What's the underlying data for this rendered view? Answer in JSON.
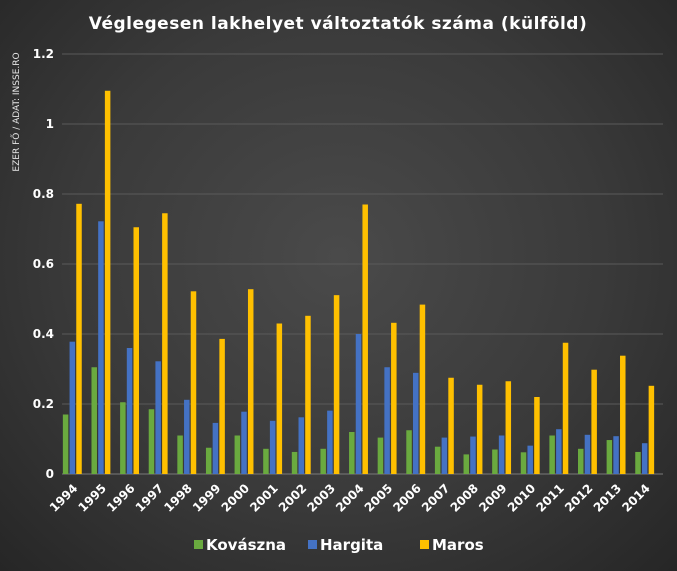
{
  "chart_data": {
    "type": "bar",
    "title": "Véglegesen lakhelyet változtatók száma (külföld)",
    "ylabel": "EZER FŐ / ADAT: INSSE.RO",
    "xlabel": "",
    "ylim": [
      0,
      1.2
    ],
    "yticks": [
      "0",
      "0.2",
      "0.4",
      "0.6",
      "0.8",
      "1",
      "1.2"
    ],
    "grid": true,
    "legend_position": "bottom",
    "categories": [
      "1994",
      "1995",
      "1996",
      "1997",
      "1998",
      "1999",
      "2000",
      "2001",
      "2002",
      "2003",
      "2004",
      "2005",
      "2006",
      "2007",
      "2008",
      "2009",
      "2010",
      "2011",
      "2012",
      "2013",
      "2014"
    ],
    "series": [
      {
        "name": "Kovászna",
        "color": "#6aaa3f",
        "values": [
          0.17,
          0.305,
          0.205,
          0.185,
          0.11,
          0.075,
          0.11,
          0.072,
          0.063,
          0.072,
          0.12,
          0.104,
          0.125,
          0.078,
          0.056,
          0.07,
          0.062,
          0.11,
          0.072,
          0.097,
          0.063
        ]
      },
      {
        "name": "Hargita",
        "color": "#4472c4",
        "values": [
          0.378,
          0.722,
          0.36,
          0.322,
          0.212,
          0.146,
          0.178,
          0.152,
          0.162,
          0.181,
          0.4,
          0.305,
          0.289,
          0.104,
          0.107,
          0.11,
          0.081,
          0.128,
          0.112,
          0.108,
          0.088
        ]
      },
      {
        "name": "Maros",
        "color": "#ffc000",
        "values": [
          0.772,
          1.095,
          0.705,
          0.745,
          0.522,
          0.386,
          0.528,
          0.43,
          0.452,
          0.511,
          0.77,
          0.432,
          0.484,
          0.275,
          0.255,
          0.265,
          0.22,
          0.375,
          0.298,
          0.338,
          0.252
        ]
      }
    ]
  }
}
